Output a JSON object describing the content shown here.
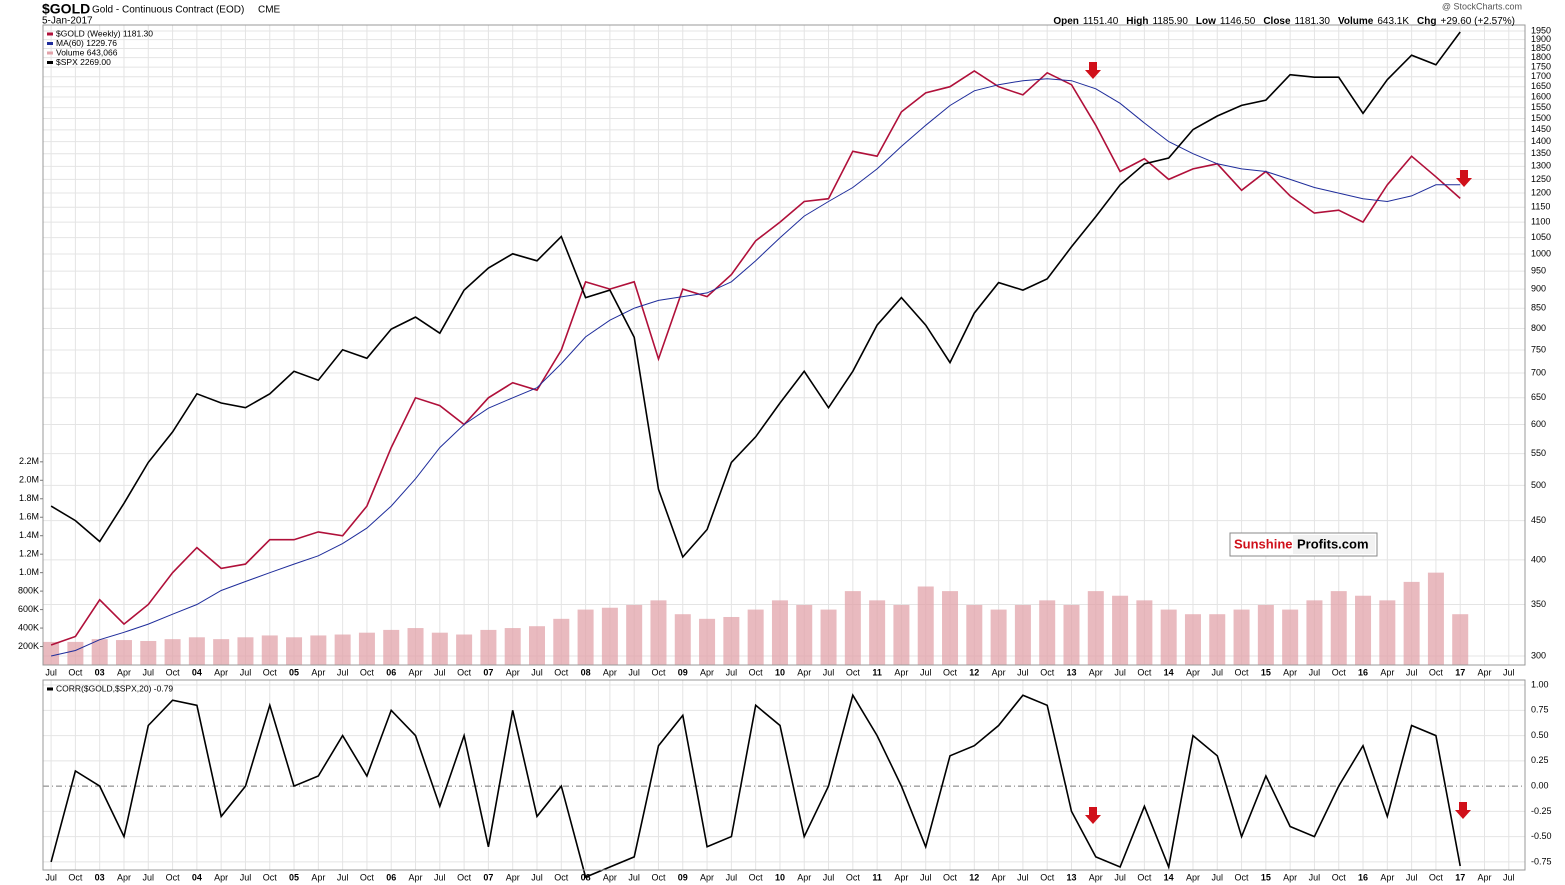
{
  "header": {
    "symbol": "$GOLD",
    "description": "Gold - Continuous Contract (EOD)",
    "exchange": "CME",
    "date": "5-Jan-2017",
    "source": "@ StockCharts.com",
    "stats": [
      {
        "label": "Open",
        "value": "1151.40"
      },
      {
        "label": "High",
        "value": "1185.90"
      },
      {
        "label": "Low",
        "value": "1146.50"
      },
      {
        "label": "Close",
        "value": "1181.30"
      },
      {
        "label": "Volume",
        "value": "643.1K"
      },
      {
        "label": "Chg",
        "value": "+29.60 (+2.57%)"
      }
    ]
  },
  "watermark": {
    "part1": "Sunshine",
    "part2": "Profits.com"
  },
  "chart_data": [
    {
      "type": "line",
      "yscale": "log",
      "y2scale": "log",
      "grid": true,
      "x": [
        "2002-07",
        "2002-10",
        "2003-01",
        "2003-04",
        "2003-07",
        "2003-10",
        "2004-01",
        "2004-04",
        "2004-07",
        "2004-10",
        "2005-01",
        "2005-04",
        "2005-07",
        "2005-10",
        "2006-01",
        "2006-04",
        "2006-07",
        "2006-10",
        "2007-01",
        "2007-04",
        "2007-07",
        "2007-10",
        "2008-01",
        "2008-04",
        "2008-07",
        "2008-10",
        "2009-01",
        "2009-04",
        "2009-07",
        "2009-10",
        "2010-01",
        "2010-04",
        "2010-07",
        "2010-10",
        "2011-01",
        "2011-04",
        "2011-07",
        "2011-10",
        "2012-01",
        "2012-04",
        "2012-07",
        "2012-10",
        "2013-01",
        "2013-04",
        "2013-07",
        "2013-10",
        "2014-01",
        "2014-04",
        "2014-07",
        "2014-10",
        "2015-01",
        "2015-04",
        "2015-07",
        "2015-10",
        "2016-01",
        "2016-04",
        "2016-07",
        "2016-10",
        "2017-01"
      ],
      "xlim": [
        "2002-06",
        "2017-09"
      ],
      "xticks": [
        {
          "value": "2002-07",
          "label": "Jul"
        },
        {
          "value": "2002-10",
          "label": "Oct"
        },
        {
          "value": "2003-01",
          "label": "03"
        },
        {
          "value": "2003-04",
          "label": "Apr"
        },
        {
          "value": "2003-07",
          "label": "Jul"
        },
        {
          "value": "2003-10",
          "label": "Oct"
        },
        {
          "value": "2004-01",
          "label": "04"
        },
        {
          "value": "2004-04",
          "label": "Apr"
        },
        {
          "value": "2004-07",
          "label": "Jul"
        },
        {
          "value": "2004-10",
          "label": "Oct"
        },
        {
          "value": "2005-01",
          "label": "05"
        },
        {
          "value": "2005-04",
          "label": "Apr"
        },
        {
          "value": "2005-07",
          "label": "Jul"
        },
        {
          "value": "2005-10",
          "label": "Oct"
        },
        {
          "value": "2006-01",
          "label": "06"
        },
        {
          "value": "2006-04",
          "label": "Apr"
        },
        {
          "value": "2006-07",
          "label": "Jul"
        },
        {
          "value": "2006-10",
          "label": "Oct"
        },
        {
          "value": "2007-01",
          "label": "07"
        },
        {
          "value": "2007-04",
          "label": "Apr"
        },
        {
          "value": "2007-07",
          "label": "Jul"
        },
        {
          "value": "2007-10",
          "label": "Oct"
        },
        {
          "value": "2008-01",
          "label": "08"
        },
        {
          "value": "2008-04",
          "label": "Apr"
        },
        {
          "value": "2008-07",
          "label": "Jul"
        },
        {
          "value": "2008-10",
          "label": "Oct"
        },
        {
          "value": "2009-01",
          "label": "09"
        },
        {
          "value": "2009-04",
          "label": "Apr"
        },
        {
          "value": "2009-07",
          "label": "Jul"
        },
        {
          "value": "2009-10",
          "label": "Oct"
        },
        {
          "value": "2010-01",
          "label": "10"
        },
        {
          "value": "2010-04",
          "label": "Apr"
        },
        {
          "value": "2010-07",
          "label": "Jul"
        },
        {
          "value": "2010-10",
          "label": "Oct"
        },
        {
          "value": "2011-01",
          "label": "11"
        },
        {
          "value": "2011-04",
          "label": "Apr"
        },
        {
          "value": "2011-07",
          "label": "Jul"
        },
        {
          "value": "2011-10",
          "label": "Oct"
        },
        {
          "value": "2012-01",
          "label": "12"
        },
        {
          "value": "2012-04",
          "label": "Apr"
        },
        {
          "value": "2012-07",
          "label": "Jul"
        },
        {
          "value": "2012-10",
          "label": "Oct"
        },
        {
          "value": "2013-01",
          "label": "13"
        },
        {
          "value": "2013-04",
          "label": "Apr"
        },
        {
          "value": "2013-07",
          "label": "Jul"
        },
        {
          "value": "2013-10",
          "label": "Oct"
        },
        {
          "value": "2014-01",
          "label": "14"
        },
        {
          "value": "2014-04",
          "label": "Apr"
        },
        {
          "value": "2014-07",
          "label": "Jul"
        },
        {
          "value": "2014-10",
          "label": "Oct"
        },
        {
          "value": "2015-01",
          "label": "15"
        },
        {
          "value": "2015-04",
          "label": "Apr"
        },
        {
          "value": "2015-07",
          "label": "Jul"
        },
        {
          "value": "2015-10",
          "label": "Oct"
        },
        {
          "value": "2016-01",
          "label": "16"
        },
        {
          "value": "2016-04",
          "label": "Apr"
        },
        {
          "value": "2016-07",
          "label": "Jul"
        },
        {
          "value": "2016-10",
          "label": "Oct"
        },
        {
          "value": "2017-01",
          "label": "17"
        },
        {
          "value": "2017-04",
          "label": "Apr"
        },
        {
          "value": "2017-07",
          "label": "Jul"
        }
      ],
      "ylim": [
        292,
        1985
      ],
      "yticks": [
        300,
        350,
        400,
        450,
        500,
        550,
        600,
        650,
        700,
        750,
        800,
        850,
        900,
        950,
        1000,
        1050,
        1100,
        1150,
        1200,
        1250,
        1300,
        1350,
        1400,
        1450,
        1500,
        1550,
        1600,
        1650,
        1700,
        1750,
        1800,
        1850,
        1900,
        1950
      ],
      "y2lim": [
        670,
        2300
      ],
      "y3lim": [
        0,
        6930000
      ],
      "y3ticks": [
        {
          "value": 200000,
          "label": "200K"
        },
        {
          "value": 400000,
          "label": "400K"
        },
        {
          "value": 600000,
          "label": "600K"
        },
        {
          "value": 800000,
          "label": "800K"
        },
        {
          "value": 1000000,
          "label": "1.0M"
        },
        {
          "value": 1200000,
          "label": "1.2M"
        },
        {
          "value": 1400000,
          "label": "1.4M"
        },
        {
          "value": 1600000,
          "label": "1.6M"
        },
        {
          "value": 1800000,
          "label": "1.8M"
        },
        {
          "value": 2000000,
          "label": "2.0M"
        },
        {
          "value": 2200000,
          "label": "2.2M"
        }
      ],
      "series": [
        {
          "name": "$GOLD (Weekly) 1181.30",
          "color": "#b0103a",
          "values": [
            310,
            318,
            355,
            330,
            350,
            385,
            415,
            390,
            395,
            425,
            425,
            435,
            430,
            470,
            560,
            650,
            635,
            600,
            650,
            680,
            665,
            750,
            920,
            900,
            920,
            730,
            900,
            880,
            940,
            1040,
            1100,
            1170,
            1180,
            1360,
            1340,
            1530,
            1620,
            1650,
            1730,
            1650,
            1610,
            1720,
            1660,
            1470,
            1280,
            1330,
            1250,
            1290,
            1310,
            1210,
            1280,
            1190,
            1130,
            1140,
            1100,
            1230,
            1340,
            1260,
            1181
          ]
        },
        {
          "name": "MA(60) 1229.76",
          "color": "#1f2d9b",
          "values": [
            300,
            305,
            315,
            322,
            330,
            340,
            350,
            365,
            375,
            385,
            395,
            405,
            420,
            440,
            470,
            510,
            560,
            600,
            630,
            650,
            670,
            720,
            780,
            820,
            850,
            870,
            880,
            890,
            920,
            980,
            1050,
            1120,
            1170,
            1220,
            1290,
            1380,
            1470,
            1560,
            1630,
            1660,
            1680,
            1690,
            1680,
            1640,
            1570,
            1480,
            1400,
            1350,
            1310,
            1290,
            1280,
            1250,
            1220,
            1200,
            1180,
            1170,
            1190,
            1230,
            1230
          ]
        },
        {
          "name": "Volume 643,066",
          "color": "#e2a3aa",
          "type": "bar",
          "axis": "y3",
          "values": [
            250000,
            250000,
            280000,
            270000,
            260000,
            280000,
            300000,
            280000,
            300000,
            320000,
            300000,
            320000,
            330000,
            350000,
            380000,
            400000,
            350000,
            330000,
            380000,
            400000,
            420000,
            500000,
            600000,
            620000,
            650000,
            700000,
            550000,
            500000,
            520000,
            600000,
            700000,
            650000,
            600000,
            800000,
            700000,
            650000,
            850000,
            800000,
            650000,
            600000,
            650000,
            700000,
            650000,
            800000,
            750000,
            700000,
            600000,
            550000,
            550000,
            600000,
            650000,
            600000,
            700000,
            800000,
            750000,
            700000,
            900000,
            1000000,
            550000
          ]
        },
        {
          "name": "$SPX 2269.00",
          "color": "#000000",
          "axis": "y2",
          "values": [
            910,
            885,
            850,
            915,
            990,
            1050,
            1130,
            1110,
            1100,
            1130,
            1180,
            1160,
            1230,
            1210,
            1280,
            1310,
            1270,
            1380,
            1440,
            1480,
            1460,
            1530,
            1360,
            1380,
            1260,
            940,
            825,
            870,
            990,
            1040,
            1110,
            1180,
            1100,
            1180,
            1290,
            1360,
            1290,
            1200,
            1320,
            1400,
            1380,
            1410,
            1500,
            1590,
            1690,
            1760,
            1780,
            1880,
            1930,
            1970,
            1990,
            2090,
            2080,
            2080,
            1940,
            2070,
            2170,
            2130,
            2269
          ]
        }
      ]
    },
    {
      "type": "line",
      "grid": true,
      "x": [
        "2002-07",
        "2002-10",
        "2003-01",
        "2003-04",
        "2003-07",
        "2003-10",
        "2004-01",
        "2004-04",
        "2004-07",
        "2004-10",
        "2005-01",
        "2005-04",
        "2005-07",
        "2005-10",
        "2006-01",
        "2006-04",
        "2006-07",
        "2006-10",
        "2007-01",
        "2007-04",
        "2007-07",
        "2007-10",
        "2008-01",
        "2008-04",
        "2008-07",
        "2008-10",
        "2009-01",
        "2009-04",
        "2009-07",
        "2009-10",
        "2010-01",
        "2010-04",
        "2010-07",
        "2010-10",
        "2011-01",
        "2011-04",
        "2011-07",
        "2011-10",
        "2012-01",
        "2012-04",
        "2012-07",
        "2012-10",
        "2013-01",
        "2013-04",
        "2013-07",
        "2013-10",
        "2014-01",
        "2014-04",
        "2014-07",
        "2014-10",
        "2015-01",
        "2015-04",
        "2015-07",
        "2015-10",
        "2016-01",
        "2016-04",
        "2016-07",
        "2016-10",
        "2017-01"
      ],
      "ylim": [
        -0.83,
        1.05
      ],
      "yticks": [
        {
          "value": 1,
          "label": "1.00"
        },
        0.75,
        {
          "value": 0.5,
          "label": "0.50"
        },
        0.25,
        {
          "value": 0,
          "label": "0.00"
        },
        -0.25,
        {
          "value": -0.5,
          "label": "-0.50"
        },
        -0.75
      ],
      "series": [
        {
          "name": "CORR($GOLD,$SPX,20) -0.79",
          "color": "#000000",
          "values": [
            -0.75,
            0.15,
            0.0,
            -0.5,
            0.6,
            0.85,
            0.8,
            -0.3,
            0.0,
            0.8,
            0.0,
            0.1,
            0.5,
            0.1,
            0.75,
            0.5,
            -0.2,
            0.5,
            -0.6,
            0.75,
            -0.3,
            0.0,
            -0.9,
            -0.8,
            -0.7,
            0.4,
            0.7,
            -0.6,
            -0.5,
            0.8,
            0.6,
            -0.5,
            0.0,
            0.9,
            0.5,
            0.0,
            -0.6,
            0.3,
            0.4,
            0.6,
            0.9,
            0.8,
            -0.25,
            -0.7,
            -0.8,
            -0.2,
            -0.8,
            0.5,
            0.3,
            -0.5,
            0.1,
            -0.4,
            -0.5,
            0.0,
            0.4,
            -0.3,
            0.6,
            0.5,
            -0.79
          ]
        }
      ]
    }
  ]
}
